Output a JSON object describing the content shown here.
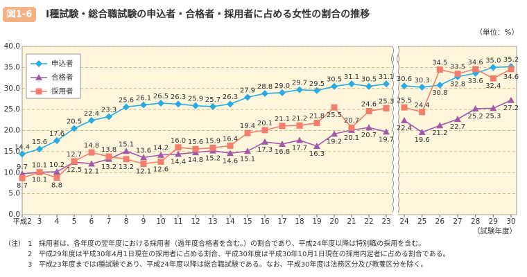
{
  "chart_data": {
    "type": "line",
    "badge": "図1-6",
    "title": "Ⅰ種試験・総合職試験の申込者・合格者・採用者に占める女性の割合の推移",
    "unit": "（単位：%）",
    "x_label": "（試験年度）",
    "categories": [
      "平成2",
      "3",
      "4",
      "5",
      "6",
      "7",
      "8",
      "9",
      "10",
      "11",
      "12",
      "13",
      "14",
      "15",
      "16",
      "17",
      "18",
      "19",
      "20",
      "21",
      "22",
      "23",
      "24",
      "25",
      "26",
      "27",
      "28",
      "29",
      "30"
    ],
    "x_break_after": 21,
    "ylim": [
      0,
      40
    ],
    "yticks": [
      {
        "value": 0,
        "label": "0.0"
      },
      {
        "value": 5,
        "label": "5.0"
      },
      {
        "value": 10,
        "label": "10.0"
      },
      {
        "value": 15,
        "label": "15.0"
      },
      {
        "value": 20,
        "label": "20.0"
      },
      {
        "value": 25,
        "label": "25.0"
      },
      {
        "value": 30,
        "label": "30.0"
      },
      {
        "value": 35,
        "label": "35.0"
      },
      {
        "value": 40,
        "label": "40.0"
      }
    ],
    "grid": true,
    "legend": "upper left",
    "series": [
      {
        "name": "申込者",
        "color": "#29abe2",
        "marker": "diamond",
        "values": [
          14.4,
          15.6,
          17.6,
          20.5,
          22.4,
          23.3,
          25.6,
          26.1,
          26.5,
          26.3,
          25.9,
          25.7,
          26.3,
          27.9,
          28.8,
          29.0,
          29.7,
          29.5,
          30.5,
          31.1,
          30.5,
          31.1,
          30.6,
          30.3,
          30.8,
          32.8,
          33.6,
          35.0,
          35.2
        ],
        "value_labels": [
          "14.4",
          "15.6",
          "17.6",
          "20.5",
          "22.4",
          "23.3",
          "25.6",
          "26.1",
          "26.5",
          "26.3",
          "25.9",
          "25.7",
          "26.3",
          "27.9",
          "28.8",
          "29.0",
          "29.7",
          "29.5",
          "30.5",
          "31.1",
          "30.5",
          "31.1",
          "30.6",
          "30.3",
          "30.8",
          "32.8",
          "33.6",
          "35.0",
          "35.2"
        ]
      },
      {
        "name": "合格者",
        "color": "#a05aa8",
        "marker": "triangle",
        "values": [
          9.7,
          10.1,
          10.2,
          12.5,
          12.1,
          13.2,
          15.1,
          13.6,
          14.2,
          14.4,
          14.8,
          15.2,
          14.6,
          15.1,
          17.3,
          16.8,
          17.7,
          16.3,
          19.2,
          20.1,
          20.7,
          19.7,
          22.4,
          19.6,
          21.2,
          22.7,
          25.2,
          25.3,
          27.2
        ],
        "value_labels": [
          "9.7",
          "10.1",
          "10.2",
          "12.5",
          "12.1",
          "13.2",
          "15.1",
          "13.6",
          "14.2",
          "14.4",
          "14.8",
          "15.2",
          "14.6",
          "15.1",
          "17.3",
          "16.8",
          "17.7",
          "16.3",
          "19.2",
          "20.1",
          "20.7",
          "19.7",
          "22.4",
          "19.6",
          "21.2",
          "22.7",
          "25.2",
          "25.3",
          "27.2"
        ]
      },
      {
        "name": "採用者",
        "color": "#f07f6e",
        "marker": "square",
        "values": [
          8.7,
          10.1,
          8.8,
          12.7,
          14.8,
          13.8,
          13.2,
          12.1,
          12.6,
          16.0,
          15.6,
          15.9,
          16.4,
          19.4,
          20.1,
          21.1,
          21.2,
          21.8,
          25.5,
          20.7,
          24.6,
          25.3,
          25.5,
          24.4,
          34.5,
          33.5,
          34.6,
          32.4,
          34.6
        ],
        "value_labels": [
          "8.7",
          "10.1",
          "8.8",
          "12.7",
          "14.8",
          "13.8",
          "13.2",
          "12.1",
          "12.6",
          "16.0",
          "15.6",
          "15.9",
          "16.4",
          "19.4",
          "20.1",
          "21.1",
          "21.2",
          "21.8",
          "25.5",
          "20.7",
          "24.6",
          "25.3",
          "25.5",
          "24.4",
          "34.5",
          "33.5",
          "34.6",
          "32.4",
          "34.6"
        ]
      }
    ],
    "notes_label": "（注）",
    "notes": [
      {
        "num": "1",
        "text": "採用者は、各年度の翌年度における採用者（過年度合格者を含む。）の割合であり、平成24年度以降は特別職の採用を含む。"
      },
      {
        "num": "2",
        "text": "平成29年度は平成30年4月1日現在の採用者に占める割合、平成30年度は平成30年10月1日現在の採用内定者に占める割合である。"
      },
      {
        "num": "3",
        "text": "平成23年度まではⅠ種試験であり、平成24年度以降は総合職試験である。なお、平成30年度は法務区分及び教養区分を除く。"
      }
    ]
  }
}
